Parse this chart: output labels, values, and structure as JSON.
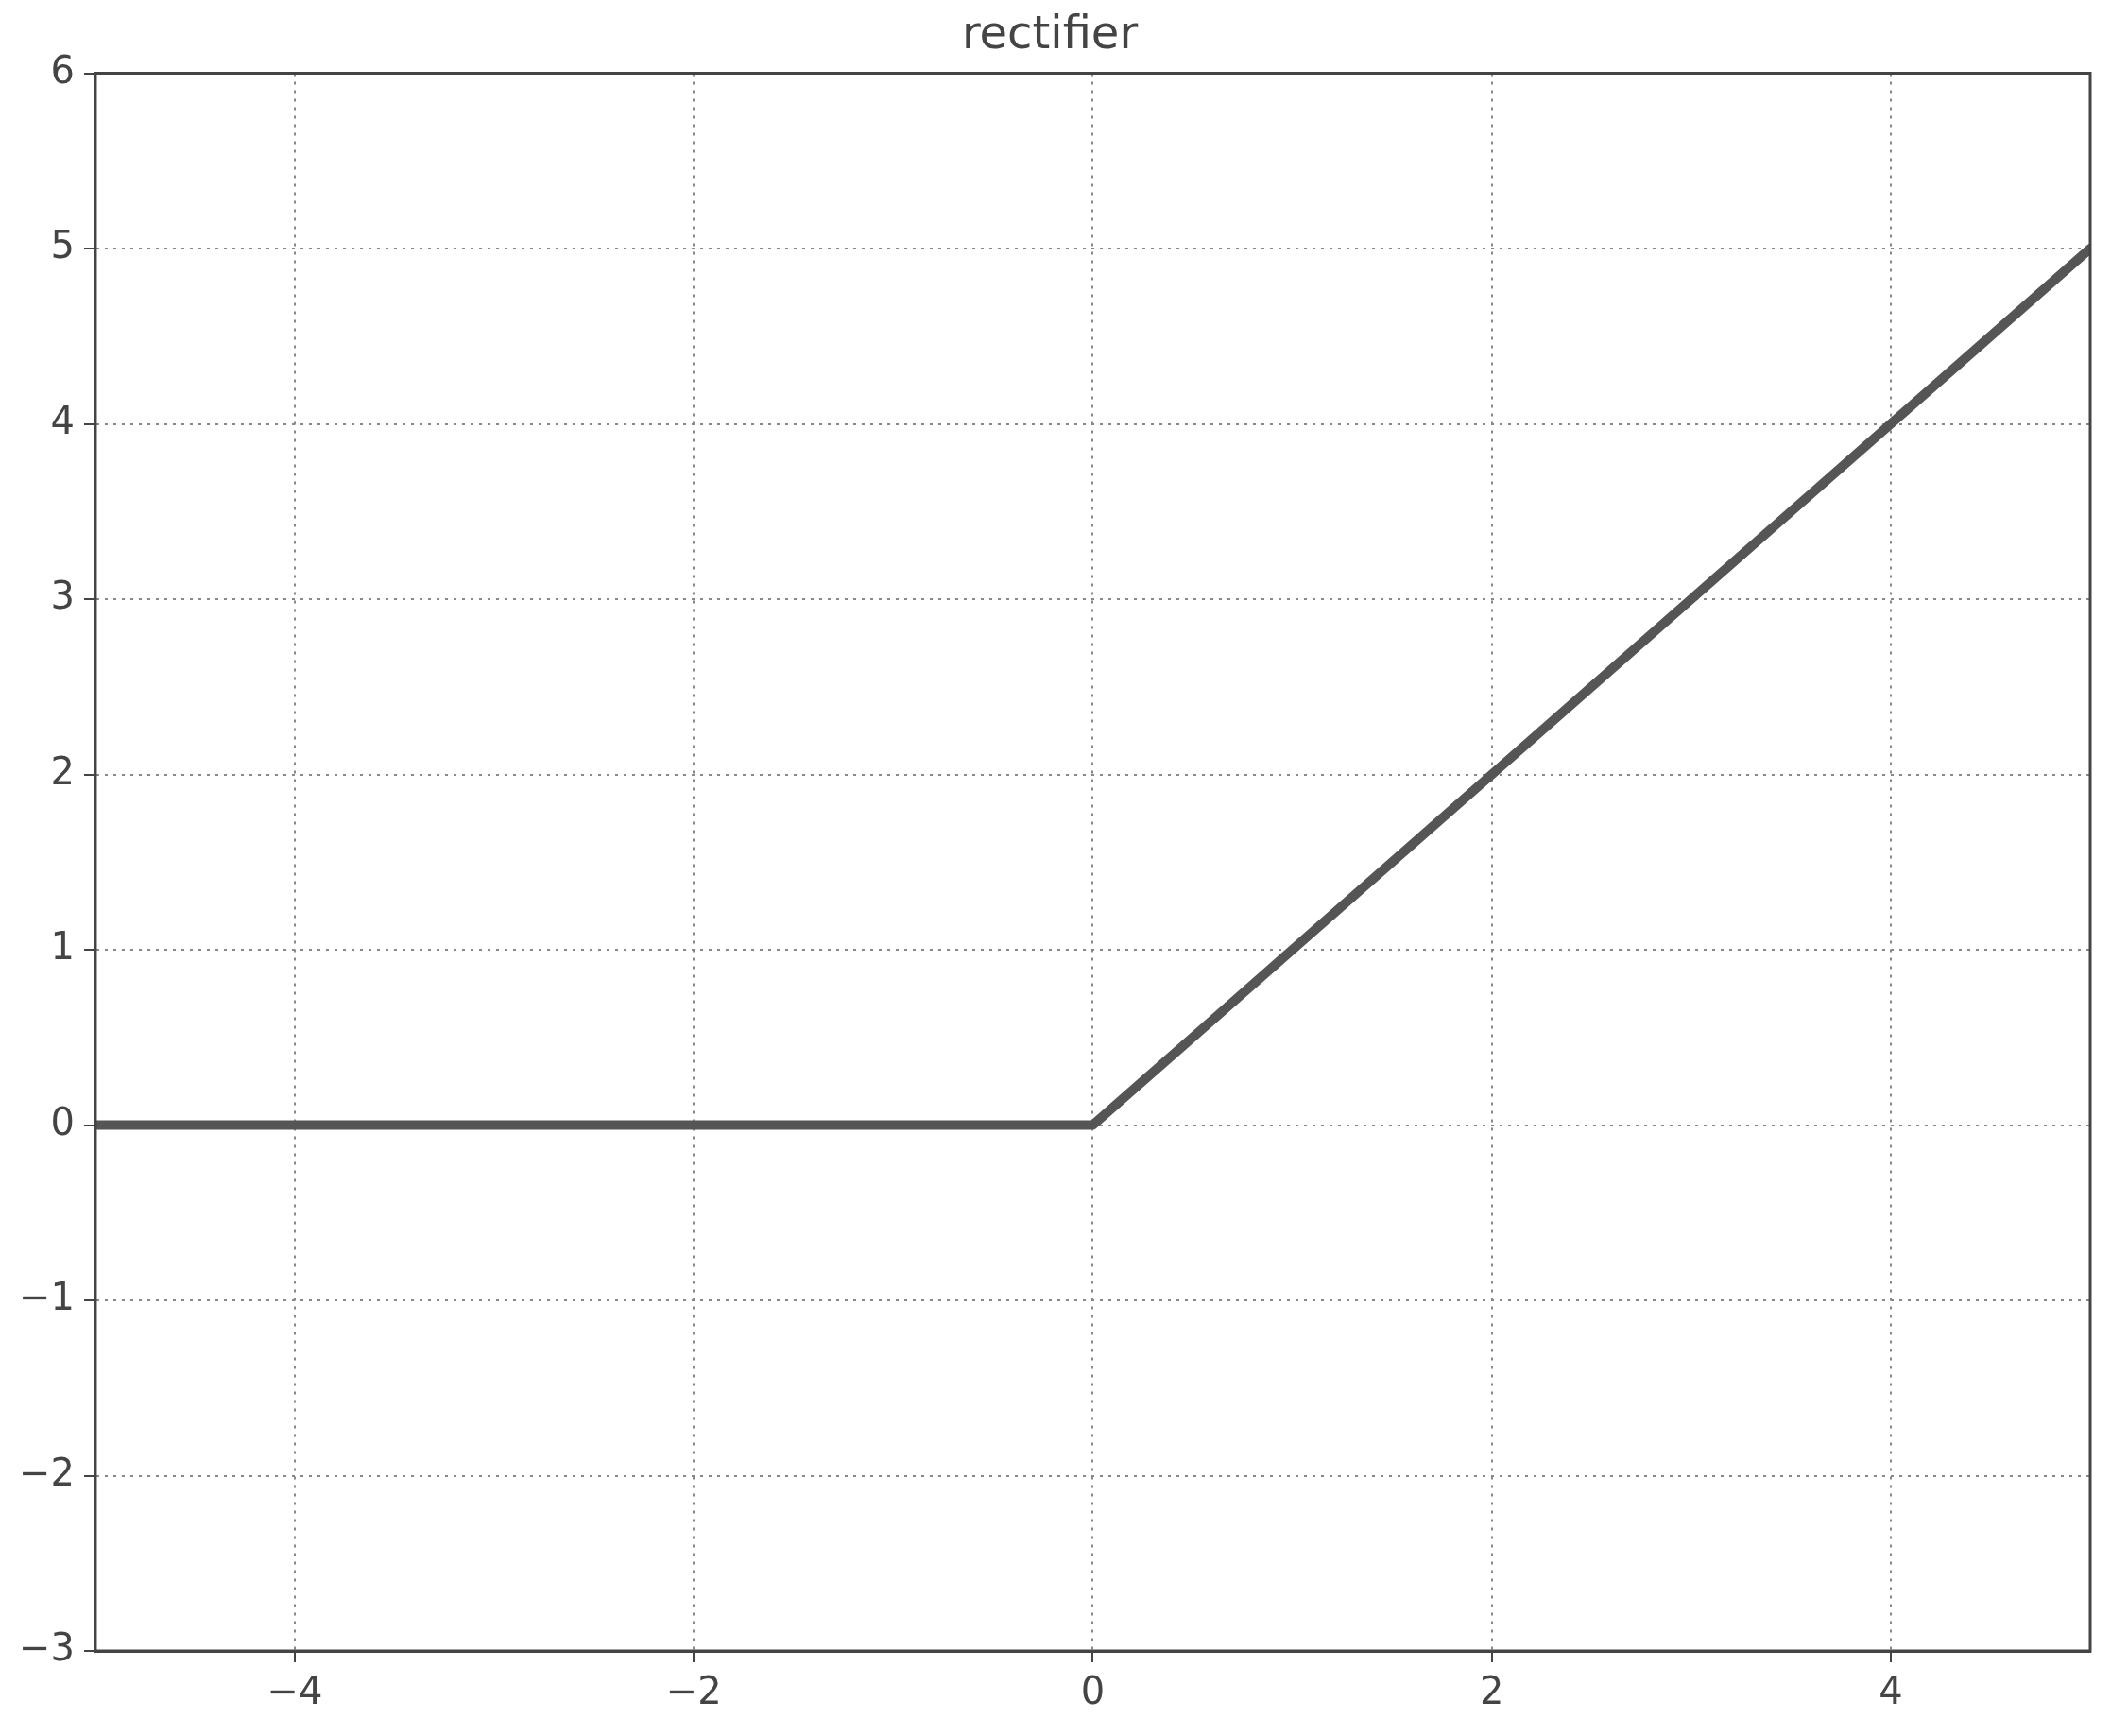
{
  "chart_data": {
    "type": "line",
    "title": "rectifier",
    "x": [
      -5,
      0,
      5
    ],
    "series": [
      {
        "color": "#555555",
        "values": [
          0,
          0,
          5
        ]
      }
    ],
    "xlim": [
      -5,
      5
    ],
    "xticks": [
      -4,
      -2,
      0,
      2,
      4
    ],
    "ylim": [
      -3,
      6
    ],
    "yticks": [
      -3,
      -2,
      -1,
      0,
      1,
      2,
      3,
      4,
      5,
      6
    ],
    "grid": true,
    "legend": false,
    "marker": "none",
    "line_style": "solid"
  }
}
